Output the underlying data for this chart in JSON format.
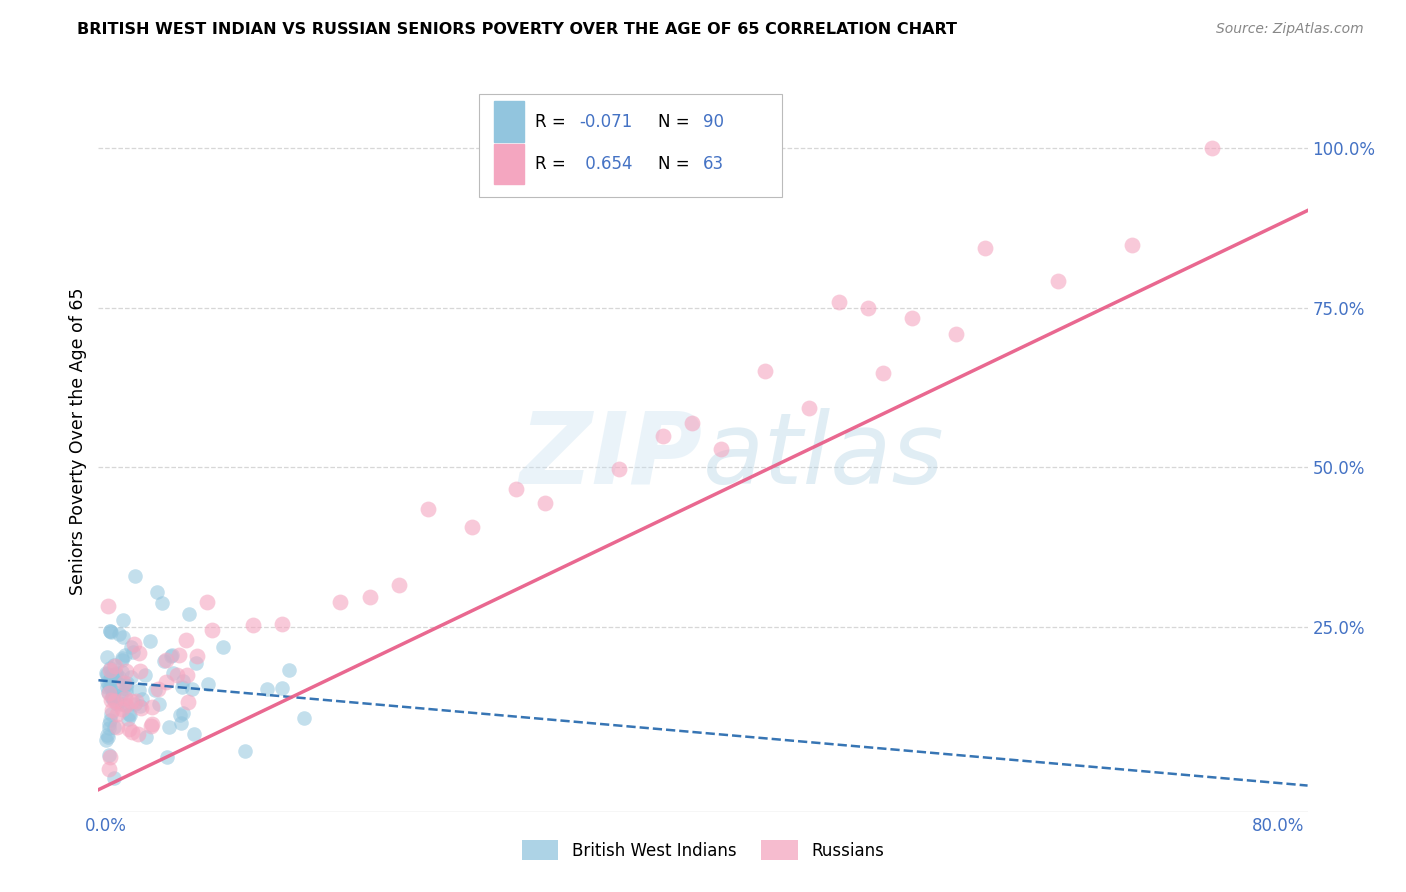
{
  "title": "BRITISH WEST INDIAN VS RUSSIAN SENIORS POVERTY OVER THE AGE OF 65 CORRELATION CHART",
  "source": "Source: ZipAtlas.com",
  "ylabel": "Seniors Poverty Over the Age of 65",
  "watermark": "ZIPatlas",
  "legend_blue_label": "British West Indians",
  "legend_pink_label": "Russians",
  "blue_R": -0.071,
  "blue_N": 90,
  "pink_R": 0.654,
  "pink_N": 63,
  "xlim": [
    -0.005,
    0.82
  ],
  "ylim": [
    -0.04,
    1.12
  ],
  "blue_color": "#92c5de",
  "pink_color": "#f4a6c0",
  "blue_line_color": "#2166ac",
  "pink_line_color": "#e8608a",
  "grid_color": "#d3d3d3",
  "bg_color": "#ffffff",
  "tick_color": "#4472c4",
  "title_color": "#000000",
  "source_color": "#888888",
  "ylabel_color": "#000000",
  "legend_r_color": "#000000",
  "legend_n_color": "#4472c4",
  "legend_rval_blue_color": "#4472c4",
  "legend_rval_pink_color": "#4472c4",
  "blue_scatter_seed": 42,
  "pink_scatter_seed": 77
}
